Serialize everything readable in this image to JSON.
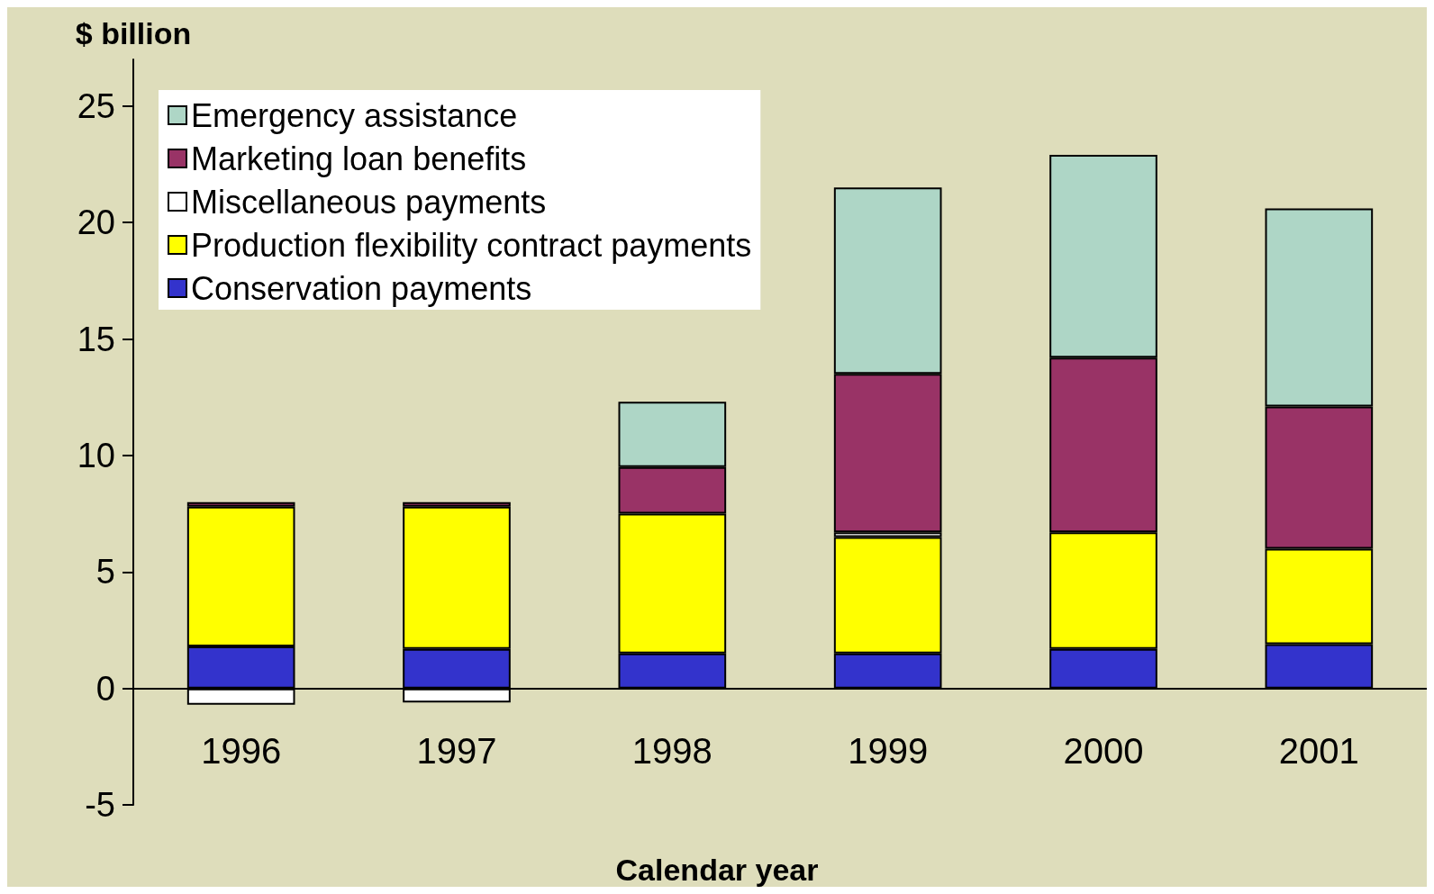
{
  "chart_data": {
    "type": "bar",
    "stacked": true,
    "xlabel": "Calendar year",
    "ylabel": "$ billion",
    "categories": [
      "1996",
      "1997",
      "1998",
      "1999",
      "2000",
      "2001"
    ],
    "series": [
      {
        "name": "Conservation payments",
        "color": "#3333cc",
        "values": [
          1.8,
          1.7,
          1.5,
          1.5,
          1.7,
          1.9
        ]
      },
      {
        "name": "Production flexibility contract payments",
        "color": "#ffff00",
        "values": [
          6.0,
          6.1,
          6.0,
          5.0,
          5.0,
          4.1
        ]
      },
      {
        "name": "Miscellaneous payments",
        "color": "#ffffff",
        "values": [
          -0.7,
          -0.6,
          null,
          0.2,
          null,
          null
        ]
      },
      {
        "name": "Marketing loan benefits",
        "color": "#993366",
        "values": [
          0.2,
          0.2,
          2.0,
          6.8,
          7.5,
          6.1
        ]
      },
      {
        "name": "Emergency assistance",
        "color": "#aed6c6",
        "values": [
          null,
          null,
          2.8,
          8.0,
          8.7,
          8.5
        ]
      }
    ],
    "ylim": [
      -5,
      27
    ],
    "yticks": [
      -5,
      0,
      5,
      10,
      15,
      20,
      25
    ],
    "grid": false,
    "legend": "top left"
  }
}
